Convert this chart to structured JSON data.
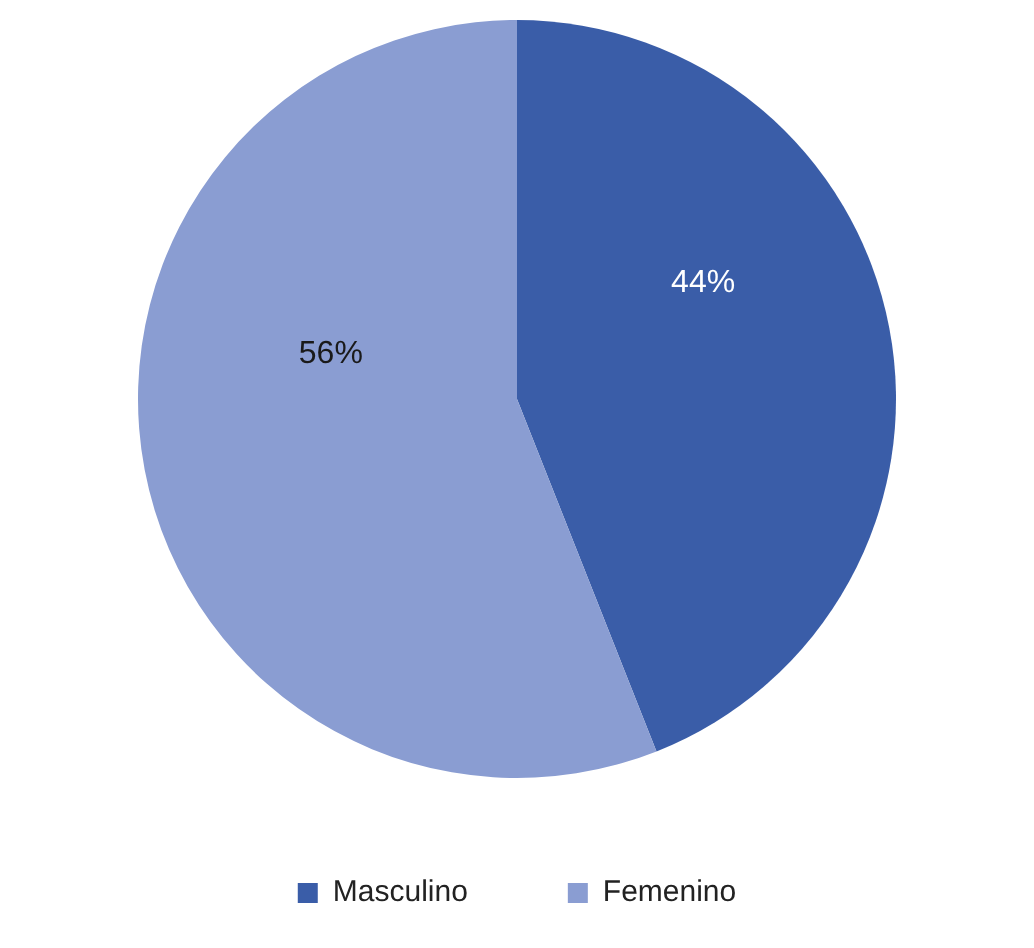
{
  "chart_data": {
    "type": "pie",
    "categories": [
      "Masculino",
      "Femenino"
    ],
    "values": [
      44,
      56
    ],
    "colors": [
      "#3a5da8",
      "#8a9dd2"
    ],
    "value_labels": [
      "44%",
      "56%"
    ],
    "legend": "bottom"
  }
}
